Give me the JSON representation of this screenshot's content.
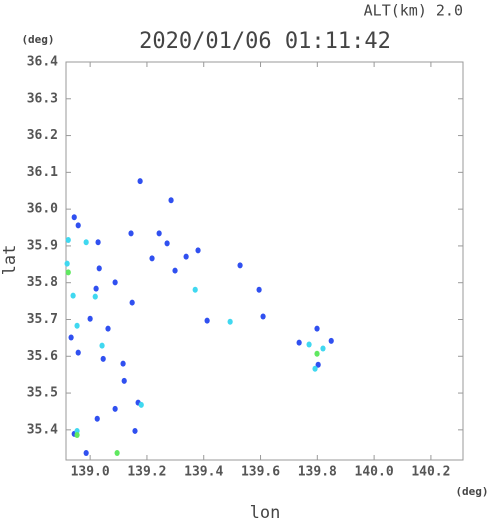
{
  "chart_data": {
    "type": "scatter",
    "title": "2020/01/06 01:11:42",
    "subtitle": "ALT(km) 2.0",
    "y_unit": "(deg)",
    "x_unit": "(deg)",
    "ylabel": "lat",
    "xlabel": "lon",
    "xlim": [
      138.915,
      140.313
    ],
    "ylim": [
      35.318,
      36.4
    ],
    "xticks": [
      {
        "value": 139.0,
        "label": "139.0"
      },
      139.2,
      139.4,
      139.6,
      139.8,
      {
        "value": 140.0,
        "label": "140.0"
      },
      140.2
    ],
    "yticks": [
      35.4,
      35.5,
      35.6,
      35.7,
      35.8,
      35.9,
      {
        "value": 36.0,
        "label": "36.0"
      },
      36.1,
      36.2,
      36.3,
      36.4
    ],
    "series": [
      {
        "color": "#3050f0",
        "x": [
          139.176,
          139.285,
          138.944,
          138.958,
          139.028,
          139.144,
          139.243,
          139.271,
          139.38,
          139.338,
          139.218,
          139.299,
          139.528,
          139.032,
          139.088,
          139.148,
          139.595,
          139.609,
          139.412,
          139.736,
          139.799,
          139.849,
          139.803,
          138.958,
          139.046,
          139.063,
          139.116,
          139.12,
          139.025,
          139.088,
          139.158,
          138.944,
          138.986,
          139.0,
          139.021,
          139.169,
          138.933
        ],
        "values": [
          36.076,
          36.024,
          35.978,
          35.956,
          35.91,
          35.934,
          35.934,
          35.907,
          35.888,
          35.871,
          35.866,
          35.833,
          35.847,
          35.839,
          35.801,
          35.746,
          35.781,
          35.708,
          35.697,
          35.637,
          35.675,
          35.642,
          35.577,
          35.61,
          35.593,
          35.675,
          35.58,
          35.533,
          35.43,
          35.457,
          35.397,
          35.389,
          35.337,
          35.702,
          35.784,
          35.474,
          35.651
        ]
      },
      {
        "color": "#40d8f0",
        "x": [
          138.986,
          138.923,
          139.37,
          139.493,
          139.792,
          139.82,
          138.94,
          139.042,
          138.954,
          138.954,
          139.18,
          139.771,
          139.018,
          138.919
        ],
        "values": [
          35.91,
          35.916,
          35.781,
          35.694,
          35.566,
          35.621,
          35.765,
          35.629,
          35.683,
          35.397,
          35.468,
          35.632,
          35.762,
          35.852
        ]
      },
      {
        "color": "#60e860",
        "x": [
          139.799,
          139.095,
          138.954,
          138.923
        ],
        "values": [
          35.607,
          35.337,
          35.386,
          35.828
        ]
      }
    ]
  }
}
